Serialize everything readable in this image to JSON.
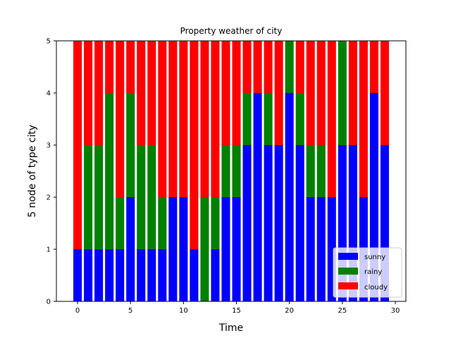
{
  "chart_data": {
    "type": "bar",
    "stacked": true,
    "title": "Property weather of city",
    "xlabel": "Time",
    "ylabel": "5 node of type city",
    "x": [
      0,
      1,
      2,
      3,
      4,
      5,
      6,
      7,
      8,
      9,
      10,
      11,
      12,
      13,
      14,
      15,
      16,
      17,
      18,
      19,
      20,
      21,
      22,
      23,
      24,
      25,
      26,
      27,
      28,
      29
    ],
    "series": [
      {
        "name": "sunny",
        "color": "#0000ff",
        "values": [
          1,
          1,
          1,
          1,
          1,
          2,
          1,
          1,
          1,
          2,
          2,
          1,
          0,
          1,
          2,
          2,
          3,
          4,
          3,
          3,
          4,
          3,
          2,
          2,
          2,
          3,
          3,
          2,
          4,
          3
        ]
      },
      {
        "name": "rainy",
        "color": "#008000",
        "values": [
          0,
          2,
          2,
          3,
          1,
          2,
          2,
          2,
          1,
          0,
          0,
          0,
          2,
          1,
          1,
          1,
          1,
          0,
          1,
          0,
          1,
          1,
          1,
          1,
          0,
          2,
          0,
          0,
          0,
          0
        ]
      },
      {
        "name": "cloudy",
        "color": "#ff0000",
        "values": [
          4,
          2,
          2,
          1,
          3,
          1,
          2,
          2,
          3,
          3,
          3,
          4,
          3,
          3,
          2,
          2,
          1,
          1,
          1,
          2,
          0,
          1,
          2,
          2,
          3,
          0,
          2,
          3,
          1,
          2
        ]
      }
    ],
    "xlim": [
      -2,
      31
    ],
    "ylim": [
      0,
      5
    ],
    "xticks": [
      "0",
      "5",
      "10",
      "15",
      "20",
      "25",
      "30"
    ],
    "yticks": [
      "0",
      "1",
      "2",
      "3",
      "4",
      "5"
    ],
    "legend_position": "lower-right",
    "grid": false
  }
}
